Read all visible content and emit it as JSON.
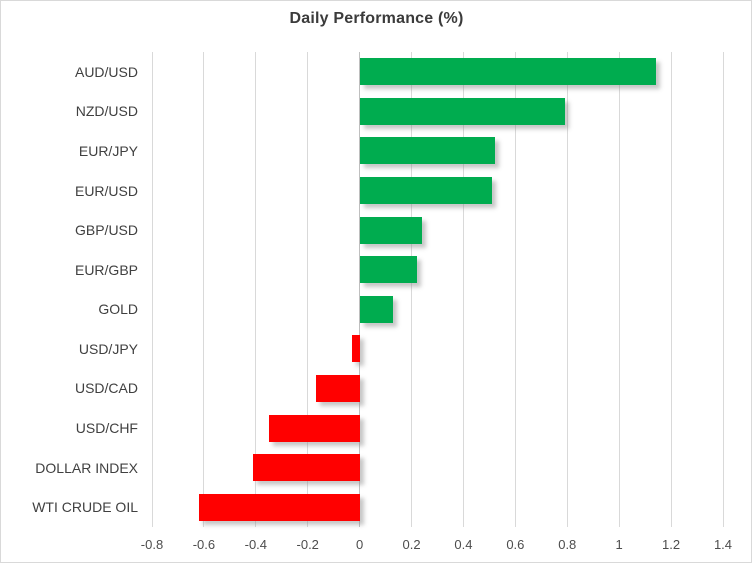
{
  "chart_data": {
    "type": "bar",
    "orientation": "horizontal",
    "title": "Daily Performance (%)",
    "categories": [
      "AUD/USD",
      "NZD/USD",
      "EUR/JPY",
      "EUR/USD",
      "GBP/USD",
      "EUR/GBP",
      "GOLD",
      "USD/JPY",
      "USD/CAD",
      "USD/CHF",
      "DOLLAR INDEX",
      "WTI CRUDE OIL"
    ],
    "values": [
      1.14,
      0.79,
      0.52,
      0.51,
      0.24,
      0.22,
      0.13,
      -0.03,
      -0.17,
      -0.35,
      -0.41,
      -0.62
    ],
    "xlabel": "",
    "ylabel": "",
    "xlim": [
      -0.8,
      1.4
    ],
    "xtick_labels": [
      "-0.8",
      "-0.6",
      "-0.4",
      "-0.2",
      "0",
      "0.2",
      "0.4",
      "0.6",
      "0.8",
      "1",
      "1.2",
      "1.4"
    ],
    "xtick_values": [
      -0.8,
      -0.6,
      -0.4,
      -0.2,
      0,
      0.2,
      0.4,
      0.6,
      0.8,
      1.0,
      1.2,
      1.4
    ],
    "grid": "vertical-only",
    "legend": false,
    "colors": {
      "positive_bar": "#00AC4F",
      "negative_bar": "#FF0000",
      "gridline": "#D9D9D9",
      "zero_axis": "#BFBFBF",
      "title_text": "#3B3B3B",
      "category_text": "#404040",
      "tick_text": "#4D4D4D",
      "chart_border": "#D9D9D9",
      "background": "#FFFFFF"
    }
  }
}
